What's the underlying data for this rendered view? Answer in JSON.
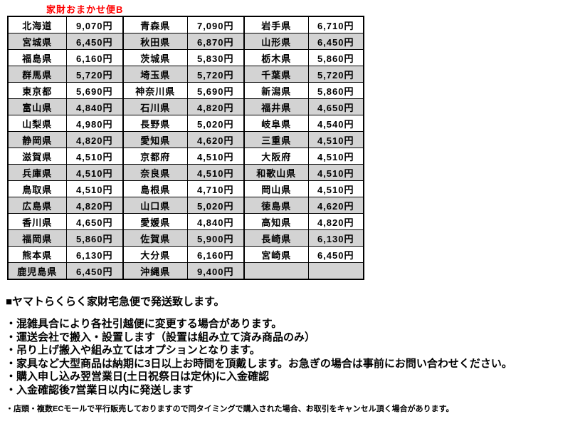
{
  "title": "家財おまかせ便B",
  "colors": {
    "title_text": "#ff0000",
    "shaded_row": "#d3d3d3",
    "border": "#000000",
    "body_text": "#000000",
    "background": "#ffffff"
  },
  "table": {
    "rows": [
      {
        "shaded": false,
        "cells": [
          "北海道",
          "9,070円",
          "青森県",
          "7,090円",
          "岩手県",
          "6,710円"
        ]
      },
      {
        "shaded": true,
        "cells": [
          "宮城県",
          "6,450円",
          "秋田県",
          "6,870円",
          "山形県",
          "6,450円"
        ]
      },
      {
        "shaded": false,
        "cells": [
          "福島県",
          "6,160円",
          "茨城県",
          "5,830円",
          "栃木県",
          "5,860円"
        ]
      },
      {
        "shaded": true,
        "cells": [
          "群馬県",
          "5,720円",
          "埼玉県",
          "5,720円",
          "千葉県",
          "5,720円"
        ]
      },
      {
        "shaded": false,
        "cells": [
          "東京都",
          "5,690円",
          "神奈川県",
          "5,690円",
          "新潟県",
          "5,860円"
        ]
      },
      {
        "shaded": true,
        "cells": [
          "富山県",
          "4,840円",
          "石川県",
          "4,820円",
          "福井県",
          "4,650円"
        ]
      },
      {
        "shaded": false,
        "cells": [
          "山梨県",
          "4,980円",
          "長野県",
          "5,020円",
          "岐阜県",
          "4,540円"
        ]
      },
      {
        "shaded": true,
        "cells": [
          "静岡県",
          "4,820円",
          "愛知県",
          "4,620円",
          "三重県",
          "4,510円"
        ]
      },
      {
        "shaded": false,
        "cells": [
          "滋賀県",
          "4,510円",
          "京都府",
          "4,510円",
          "大阪府",
          "4,510円"
        ]
      },
      {
        "shaded": true,
        "cells": [
          "兵庫県",
          "4,510円",
          "奈良県",
          "4,510円",
          "和歌山県",
          "4,510円"
        ]
      },
      {
        "shaded": false,
        "cells": [
          "鳥取県",
          "4,510円",
          "島根県",
          "4,710円",
          "岡山県",
          "4,510円"
        ]
      },
      {
        "shaded": true,
        "cells": [
          "広島県",
          "4,820円",
          "山口県",
          "5,020円",
          "徳島県",
          "4,620円"
        ]
      },
      {
        "shaded": false,
        "cells": [
          "香川県",
          "4,650円",
          "愛媛県",
          "4,840円",
          "高知県",
          "4,820円"
        ]
      },
      {
        "shaded": true,
        "cells": [
          "福岡県",
          "5,860円",
          "佐賀県",
          "5,900円",
          "長崎県",
          "6,130円"
        ]
      },
      {
        "shaded": false,
        "cells": [
          "熊本県",
          "6,130円",
          "大分県",
          "6,160円",
          "宮崎県",
          "6,450円"
        ]
      },
      {
        "shaded": true,
        "cells": [
          "鹿児島県",
          "6,450円",
          "沖縄県",
          "9,400円",
          "",
          ""
        ]
      }
    ]
  },
  "notes": {
    "heading": "■ヤマトらくらく家財宅急便で発送致します。",
    "bullets": [
      "・混雑具合により各社引越便に変更する場合があります。",
      "・運送会社で搬入・設置します（設置は組み立て済み商品のみ）",
      "・吊り上げ搬入や組み立てはオプションとなります。",
      "・家具など大型商品は納期に3日以上お時間を頂戴します。お急ぎの場合は事前にお問い合わせください。",
      "・購入申し込み翌営業日(土日祝祭日は定休)に入金確認",
      "・入金確認後7営業日以内に発送します"
    ],
    "small_note": "・店頭・複数ECモールで平行販売しておりますので同タイミングで購入された場合、お取引をキャンセル頂く場合があります。"
  }
}
